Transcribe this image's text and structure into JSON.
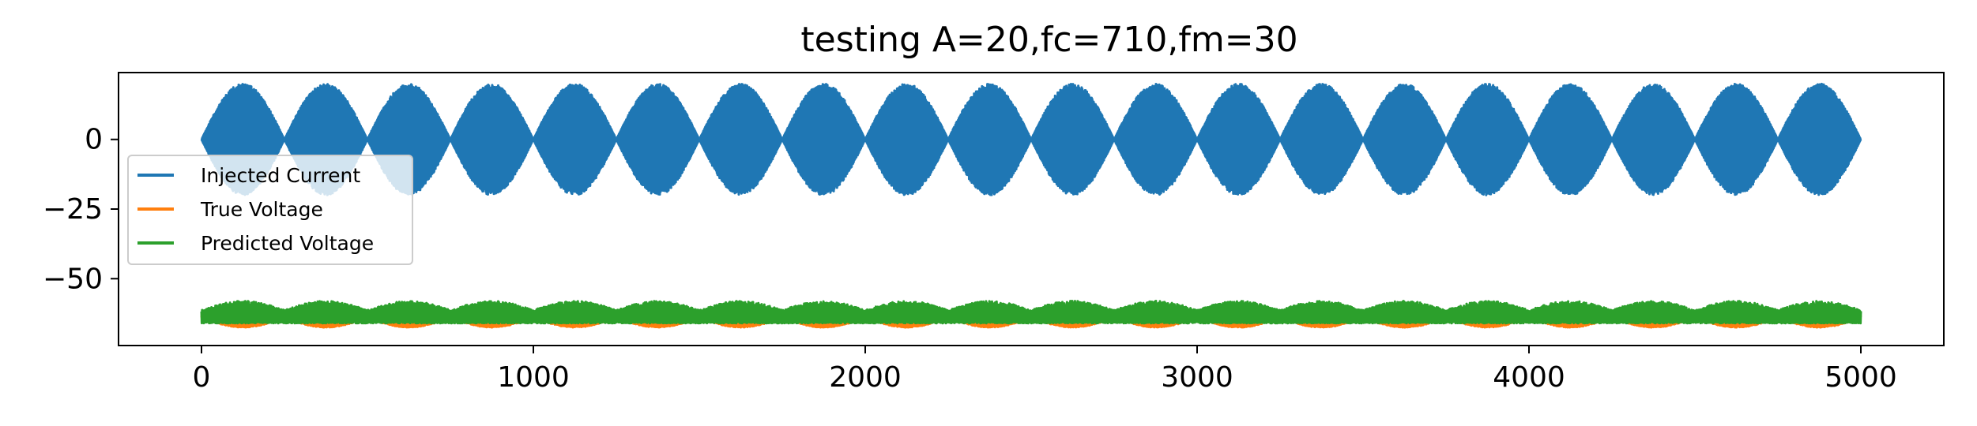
{
  "chart_data": {
    "type": "line",
    "title": "testing A=20,fc=710,fm=30",
    "xlabel": "",
    "ylabel": "",
    "xlim": [
      -250,
      5250
    ],
    "ylim": [
      -74,
      24
    ],
    "xticks": [
      0,
      1000,
      2000,
      3000,
      4000,
      5000
    ],
    "xtick_labels": [
      "0",
      "1000",
      "2000",
      "3000",
      "4000",
      "5000"
    ],
    "yticks": [
      0,
      -25,
      -50
    ],
    "ytick_labels": [
      "0",
      "−25",
      "−50"
    ],
    "grid": false,
    "legend_position": "center-left",
    "series": [
      {
        "name": "Injected Current",
        "color": "#1f77b4",
        "kind": "modulated_sine",
        "n_samples": 5000,
        "amplitude": 20,
        "envelope_period": 250,
        "offset": 0
      },
      {
        "name": "True Voltage",
        "color": "#ff7f0e",
        "kind": "band",
        "n_samples": 5000,
        "envelope_period": 250,
        "lower_min": -67.5,
        "lower_max": -64,
        "upper": -63
      },
      {
        "name": "Predicted Voltage",
        "color": "#2ca02c",
        "kind": "band",
        "n_samples": 5000,
        "envelope_period": 250,
        "lower": -66,
        "upper_min": -64,
        "upper_max": -58
      }
    ]
  }
}
